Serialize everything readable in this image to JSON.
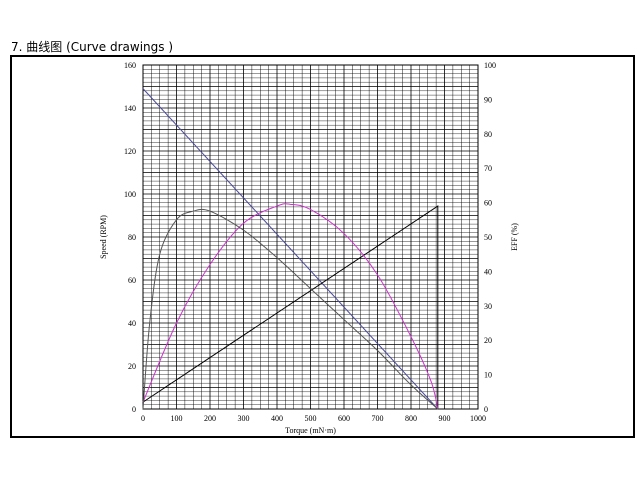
{
  "section": {
    "title": "7. 曲线图 (Curve drawings )"
  },
  "chart_data": {
    "type": "line",
    "xlabel": "Torque (mN·m)",
    "ylabel_left": "Speed (RPM)",
    "ylabel_right": "EFF (%)",
    "xlim": [
      0,
      1000
    ],
    "ylim_left": [
      0,
      160
    ],
    "ylim_right": [
      0,
      100
    ],
    "x_ticks": [
      0,
      100,
      200,
      300,
      400,
      500,
      600,
      700,
      800,
      900,
      1000
    ],
    "y_ticks_left": [
      0,
      20,
      40,
      60,
      80,
      100,
      120,
      140,
      160
    ],
    "y_ticks_right": [
      0,
      10,
      20,
      30,
      40,
      50,
      60,
      70,
      80,
      90,
      100
    ],
    "grid": true,
    "series": [
      {
        "axis": "left",
        "color": "#4a4a9a",
        "points": [
          [
            0,
            149
          ],
          [
            880,
            0
          ]
        ]
      },
      {
        "axis": "right",
        "color": "#000000",
        "points": [
          [
            0,
            2
          ],
          [
            880,
            59
          ],
          [
            880,
            0
          ]
        ]
      },
      {
        "axis": "right",
        "color": "#cc33cc",
        "points": [
          [
            0,
            2
          ],
          [
            100,
            25
          ],
          [
            200,
            42
          ],
          [
            300,
            54
          ],
          [
            400,
            59
          ],
          [
            440,
            59.5
          ],
          [
            500,
            58
          ],
          [
            600,
            51
          ],
          [
            700,
            39
          ],
          [
            800,
            21
          ],
          [
            860,
            8
          ],
          [
            880,
            0
          ]
        ]
      },
      {
        "axis": "right",
        "color": "#555555",
        "points": [
          [
            0,
            0
          ],
          [
            20,
            25
          ],
          [
            50,
            45
          ],
          [
            100,
            55
          ],
          [
            150,
            57.5
          ],
          [
            200,
            57.5
          ],
          [
            300,
            52
          ],
          [
            400,
            44
          ],
          [
            500,
            35
          ],
          [
            600,
            26
          ],
          [
            700,
            17
          ],
          [
            800,
            7
          ],
          [
            880,
            0
          ]
        ]
      }
    ]
  }
}
